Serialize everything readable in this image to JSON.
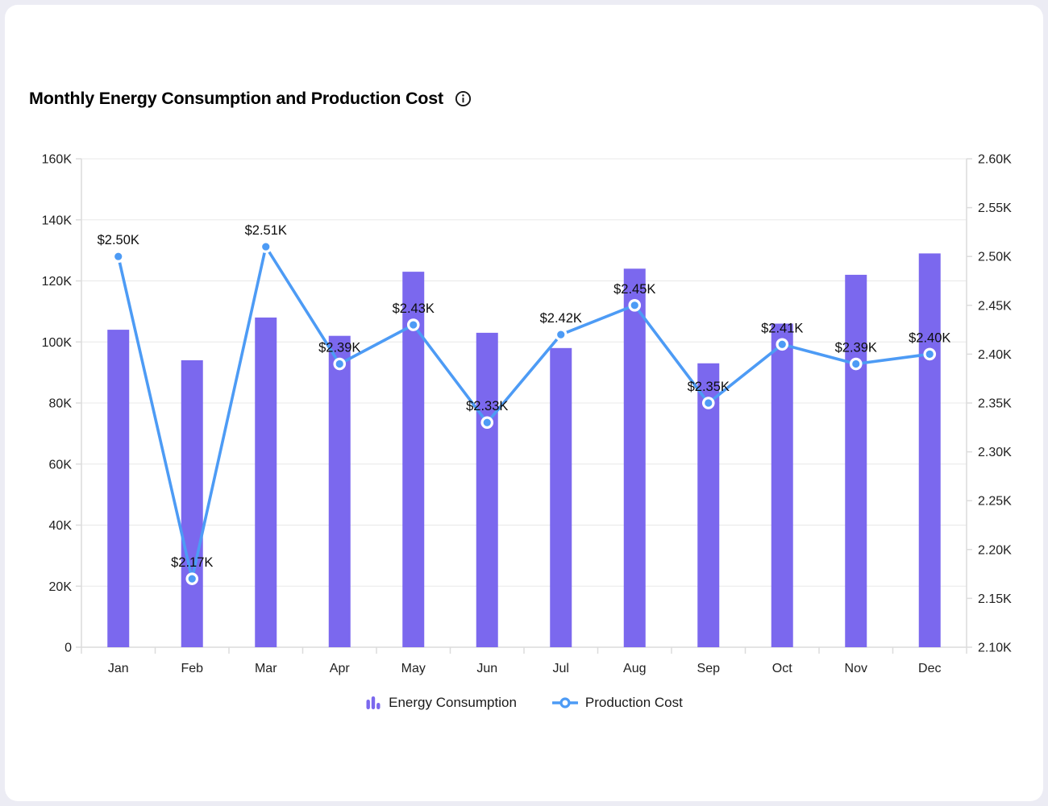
{
  "page": {
    "background_color": "#ECECF4",
    "card_background": "#FFFFFF"
  },
  "header": {
    "title": "Monthly Energy Consumption and Production Cost",
    "info_icon": "info-icon"
  },
  "legend": {
    "position": "bottom",
    "items": [
      {
        "label": "Energy Consumption",
        "icon": "bar-chart-icon",
        "color": "#7B68EE"
      },
      {
        "label": "Production Cost",
        "icon": "line-point-icon",
        "color": "#4D9BF5"
      }
    ]
  },
  "chart_data": {
    "type": "combo",
    "categories": [
      "Jan",
      "Feb",
      "Mar",
      "Apr",
      "May",
      "Jun",
      "Jul",
      "Aug",
      "Sep",
      "Oct",
      "Nov",
      "Dec"
    ],
    "series": [
      {
        "name": "Energy Consumption",
        "type": "bar",
        "axis": "left",
        "unit": "K",
        "color": "#7B68EE",
        "values": [
          104,
          94,
          108,
          102,
          123,
          103,
          98,
          124,
          93,
          106,
          122,
          129
        ]
      },
      {
        "name": "Production Cost",
        "type": "line",
        "axis": "right",
        "unit": "$K",
        "color": "#4D9BF5",
        "values": [
          2.5,
          2.17,
          2.51,
          2.39,
          2.43,
          2.33,
          2.42,
          2.45,
          2.35,
          2.41,
          2.39,
          2.4
        ],
        "point_labels": [
          "$2.50K",
          "$2.17K",
          "$2.51K",
          "$2.39K",
          "$2.43K",
          "$2.33K",
          "$2.42K",
          "$2.45K",
          "$2.35K",
          "$2.41K",
          "$2.39K",
          "$2.40K"
        ]
      }
    ],
    "left_axis": {
      "min": 0,
      "max": 160,
      "step": 20,
      "tick_labels": [
        "0",
        "20K",
        "40K",
        "60K",
        "80K",
        "100K",
        "120K",
        "140K",
        "160K"
      ]
    },
    "right_axis": {
      "min": 2.1,
      "max": 2.6,
      "step": 0.05,
      "tick_labels": [
        "2.10K",
        "2.15K",
        "2.20K",
        "2.25K",
        "2.30K",
        "2.35K",
        "2.40K",
        "2.45K",
        "2.50K",
        "2.55K",
        "2.60K"
      ]
    },
    "grid": true,
    "grid_color": "#E8E8E8",
    "axis_line_color": "#DCDCDC",
    "marker_halo_color": "#FFFFFF",
    "legend_position": "bottom"
  }
}
